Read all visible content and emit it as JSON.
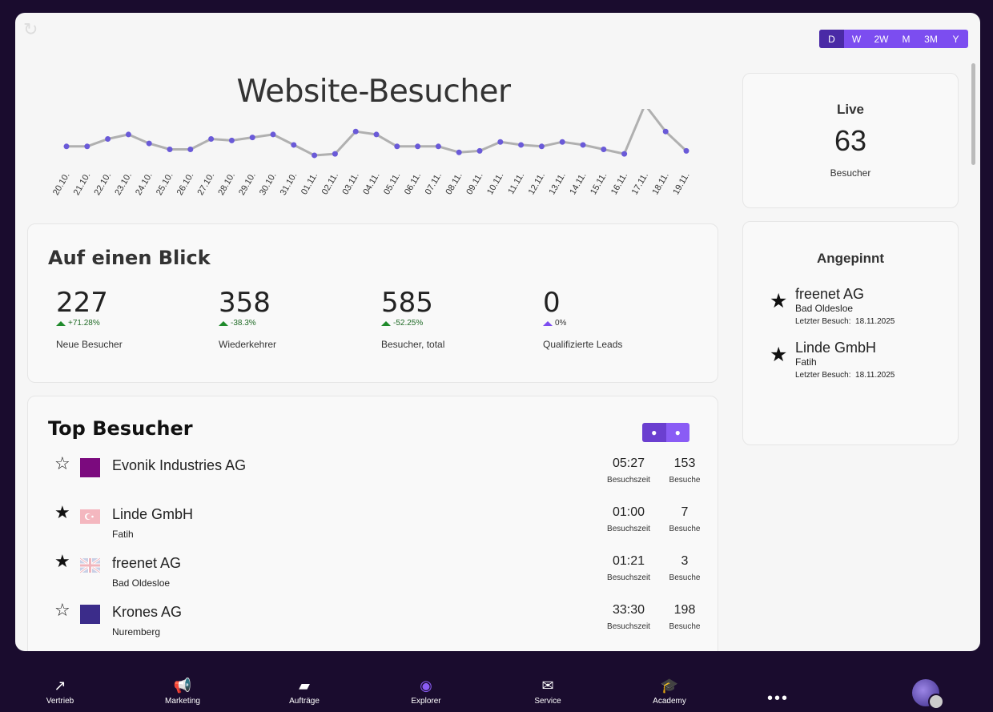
{
  "header": {
    "range_options": [
      "D",
      "W",
      "2W",
      "M",
      "3M",
      "Y"
    ],
    "active_range": "D"
  },
  "chart_data": {
    "type": "line",
    "title": "Website-Besucher",
    "categories": [
      "20.10.",
      "21.10.",
      "22.10.",
      "23.10.",
      "24.10.",
      "25.10.",
      "26.10.",
      "27.10.",
      "28.10.",
      "29.10.",
      "30.10.",
      "31.10.",
      "01.11.",
      "02.11.",
      "03.11.",
      "04.11.",
      "05.11.",
      "06.11.",
      "07.11.",
      "08.11.",
      "09.11.",
      "10.11.",
      "11.11.",
      "12.11.",
      "13.11.",
      "14.11.",
      "15.11.",
      "16.11.",
      "17.11.",
      "18.11.",
      "19.11."
    ],
    "values": [
      20,
      20,
      25,
      28,
      22,
      18,
      18,
      25,
      24,
      26,
      28,
      21,
      14,
      15,
      30,
      28,
      20,
      20,
      20,
      16,
      17,
      23,
      21,
      20,
      23,
      21,
      18,
      15,
      48,
      30,
      17
    ],
    "grid": false,
    "legend": "none",
    "line_color": "#b0b0b0",
    "point_color": "#6a5ad8"
  },
  "live": {
    "label": "Live",
    "count": "63",
    "sub": "Besucher"
  },
  "blick": {
    "title": "Auf einen Blick",
    "metrics": [
      {
        "value": "227",
        "delta": "+71.28%",
        "label": "Neue Besucher"
      },
      {
        "value": "358",
        "delta": "-38.3%",
        "label": "Wiederkehrer"
      },
      {
        "value": "585",
        "delta": "-52.25%",
        "label": "Besucher, total"
      },
      {
        "value": "0",
        "delta": "0%",
        "label": "Qualifizierte Leads"
      }
    ]
  },
  "pinned": {
    "title": "Angepinnt",
    "items": [
      {
        "name": "freenet AG",
        "location": "Bad Oldesloe",
        "last_visit_label": "Letzter Besuch:",
        "last_visit": "18.11.2025"
      },
      {
        "name": "Linde GmbH",
        "location": "Fatih",
        "last_visit_label": "Letzter Besuch:",
        "last_visit": "18.11.2025"
      }
    ]
  },
  "top": {
    "title": "Top Besucher",
    "time_label": "Besuchszeit",
    "visits_label": "Besuche",
    "rows": [
      {
        "name": "Evonik Industries AG",
        "location": "",
        "time": "05:27",
        "visits": "153",
        "pinned": false,
        "flag": "purple-square"
      },
      {
        "name": "Linde GmbH",
        "location": "Fatih",
        "time": "01:00",
        "visits": "7",
        "pinned": true,
        "flag": "turkey-flag"
      },
      {
        "name": "freenet AG",
        "location": "Bad Oldesloe",
        "time": "01:21",
        "visits": "3",
        "pinned": true,
        "flag": "uk-flag"
      },
      {
        "name": "Krones AG",
        "location": "Nuremberg",
        "time": "33:30",
        "visits": "198",
        "pinned": false,
        "flag": "navy-square"
      }
    ]
  },
  "nav": {
    "items": [
      {
        "label": "Vertrieb",
        "icon": "trending-up-icon"
      },
      {
        "label": "Marketing",
        "icon": "megaphone-icon"
      },
      {
        "label": "Aufträge",
        "icon": "ticket-icon"
      },
      {
        "label": "Explorer",
        "icon": "compass-icon"
      },
      {
        "label": "Service",
        "icon": "mail-icon"
      },
      {
        "label": "Academy",
        "icon": "graduation-cap-icon"
      }
    ],
    "active": "Explorer"
  }
}
